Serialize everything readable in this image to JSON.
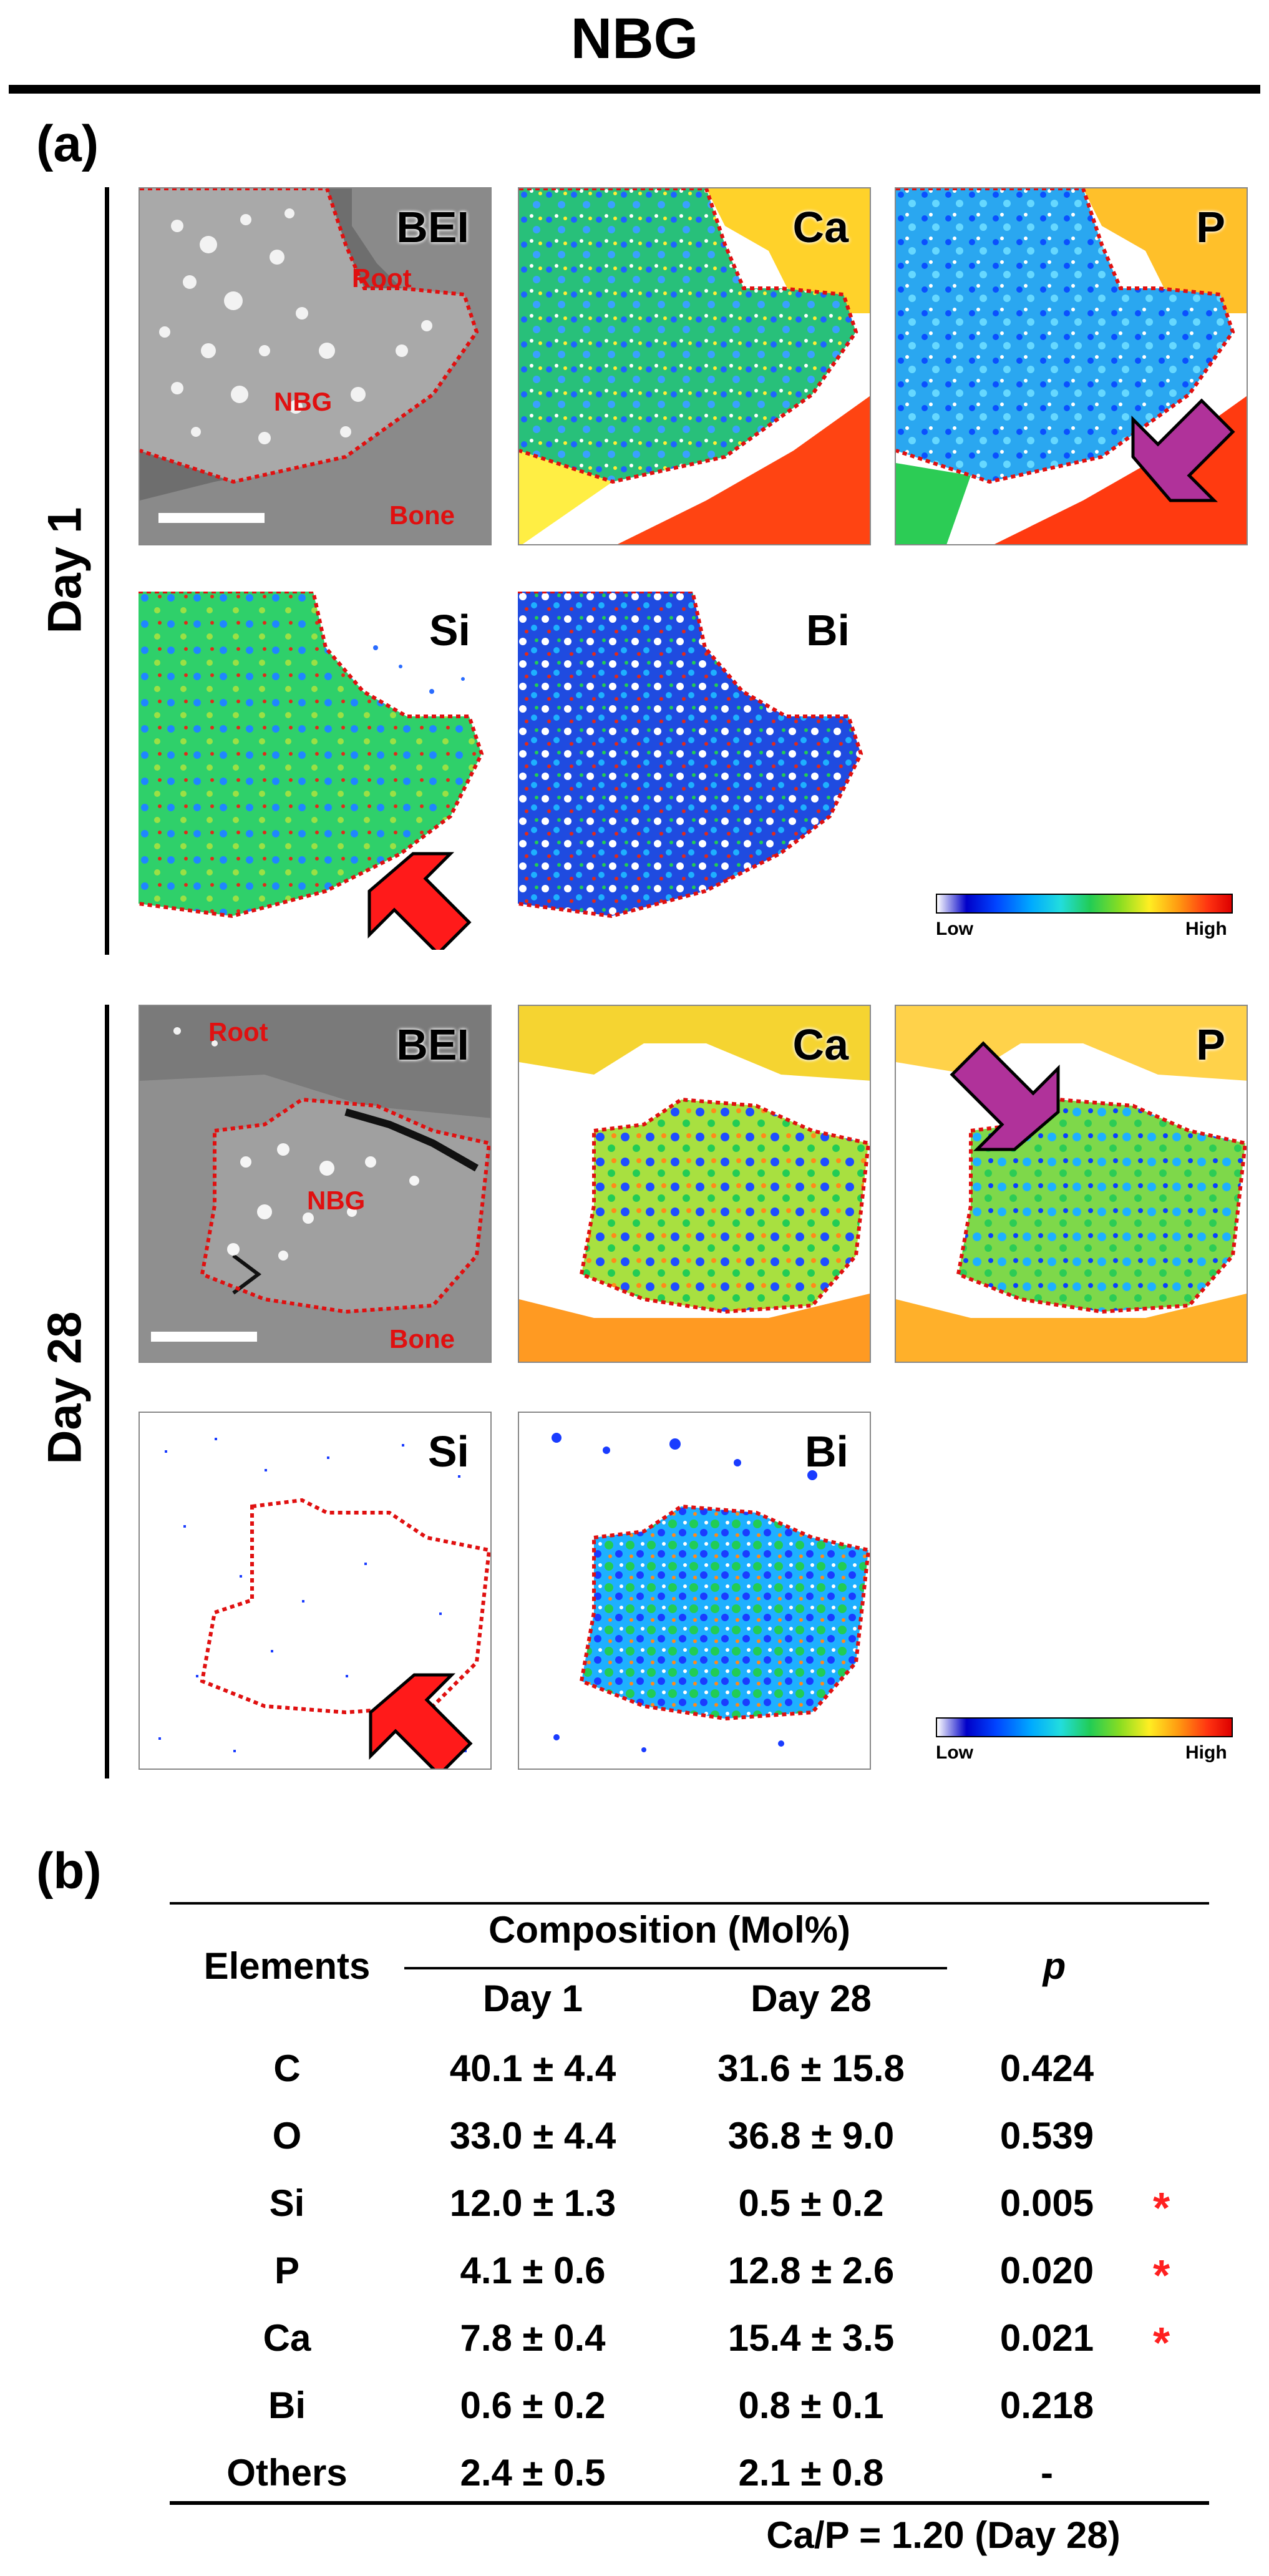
{
  "figure": {
    "title": "NBG",
    "panel_a_label": "(a)",
    "panel_b_label": "(b)",
    "day_labels": [
      "Day 1",
      "Day 28"
    ],
    "tile_labels": [
      "BEI",
      "Ca",
      "P",
      "Si",
      "Bi"
    ],
    "region_labels": {
      "root": "Root",
      "nbg": "NBG",
      "bone": "Bone"
    },
    "colorbar": {
      "low": "Low",
      "high": "High"
    },
    "colors": {
      "boundary": "#e01010",
      "arrow_red": "#ff1a1a",
      "arrow_purple": "#b0329a"
    }
  },
  "table": {
    "col_elements": "Elements",
    "col_group": "Composition (Mol%)",
    "col_day1": "Day 1",
    "col_day28": "Day 28",
    "col_p": "p",
    "rows": [
      {
        "element": "C",
        "day1": "40.1 ± 4.4",
        "day28": "31.6 ± 15.8",
        "p": "0.424",
        "sig": ""
      },
      {
        "element": "O",
        "day1": "33.0 ± 4.4",
        "day28": "36.8 ± 9.0",
        "p": "0.539",
        "sig": ""
      },
      {
        "element": "Si",
        "day1": "12.0 ± 1.3",
        "day28": "0.5 ± 0.2",
        "p": "0.005",
        "sig": "*"
      },
      {
        "element": "P",
        "day1": "4.1 ± 0.6",
        "day28": "12.8 ± 2.6",
        "p": "0.020",
        "sig": "*"
      },
      {
        "element": "Ca",
        "day1": "7.8 ± 0.4",
        "day28": "15.4 ± 3.5",
        "p": "0.021",
        "sig": "*"
      },
      {
        "element": "Bi",
        "day1": "0.6 ± 0.2",
        "day28": "0.8 ± 0.1",
        "p": "0.218",
        "sig": ""
      },
      {
        "element": "Others",
        "day1": "2.4 ± 0.5",
        "day28": "2.1 ± 0.8",
        "p": "-",
        "sig": ""
      }
    ],
    "footer": "Ca/P = 1.20 (Day 28)"
  }
}
